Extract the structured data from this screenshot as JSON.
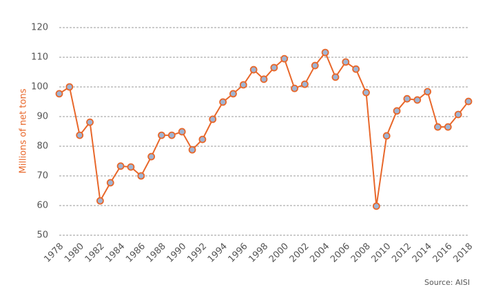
{
  "chart_data": {
    "type": "line",
    "y_label": "Millions of net tons",
    "source": "Source: AISI",
    "x": [
      1978,
      1979,
      1980,
      1981,
      1982,
      1983,
      1984,
      1985,
      1986,
      1987,
      1988,
      1989,
      1990,
      1991,
      1992,
      1993,
      1994,
      1995,
      1996,
      1997,
      1998,
      1999,
      2000,
      2001,
      2002,
      2003,
      2004,
      2005,
      2006,
      2007,
      2008,
      2009,
      2010,
      2011,
      2012,
      2013,
      2014,
      2015,
      2016,
      2017,
      2018
    ],
    "series": [
      {
        "color": "#e8672a",
        "marker_color": "#9fb4d3",
        "values": [
          97.7,
          100,
          83.7,
          88.1,
          61.6,
          67.7,
          73.3,
          73.0,
          70.0,
          76.5,
          83.7,
          83.7,
          84.9,
          78.8,
          82.3,
          89.1,
          94.9,
          97.7,
          100.7,
          105.8,
          102.6,
          106.5,
          109.5,
          99.5,
          100.9,
          107.2,
          111.6,
          103.3,
          108.4,
          106.0,
          98.1,
          59.8,
          83.5,
          91.9,
          96.0,
          95.6,
          98.4,
          86.5,
          86.5,
          90.7,
          95.1
        ]
      }
    ],
    "xlim": [
      1978,
      2018
    ],
    "xticks": [
      1978,
      1980,
      1982,
      1984,
      1986,
      1988,
      1990,
      1992,
      1994,
      1996,
      1998,
      2000,
      2002,
      2004,
      2006,
      2008,
      2010,
      2012,
      2014,
      2016,
      2018
    ],
    "ylim": [
      50,
      120
    ],
    "yticks": [
      50,
      60,
      70,
      80,
      90,
      100,
      110,
      120
    ],
    "grid": true
  }
}
